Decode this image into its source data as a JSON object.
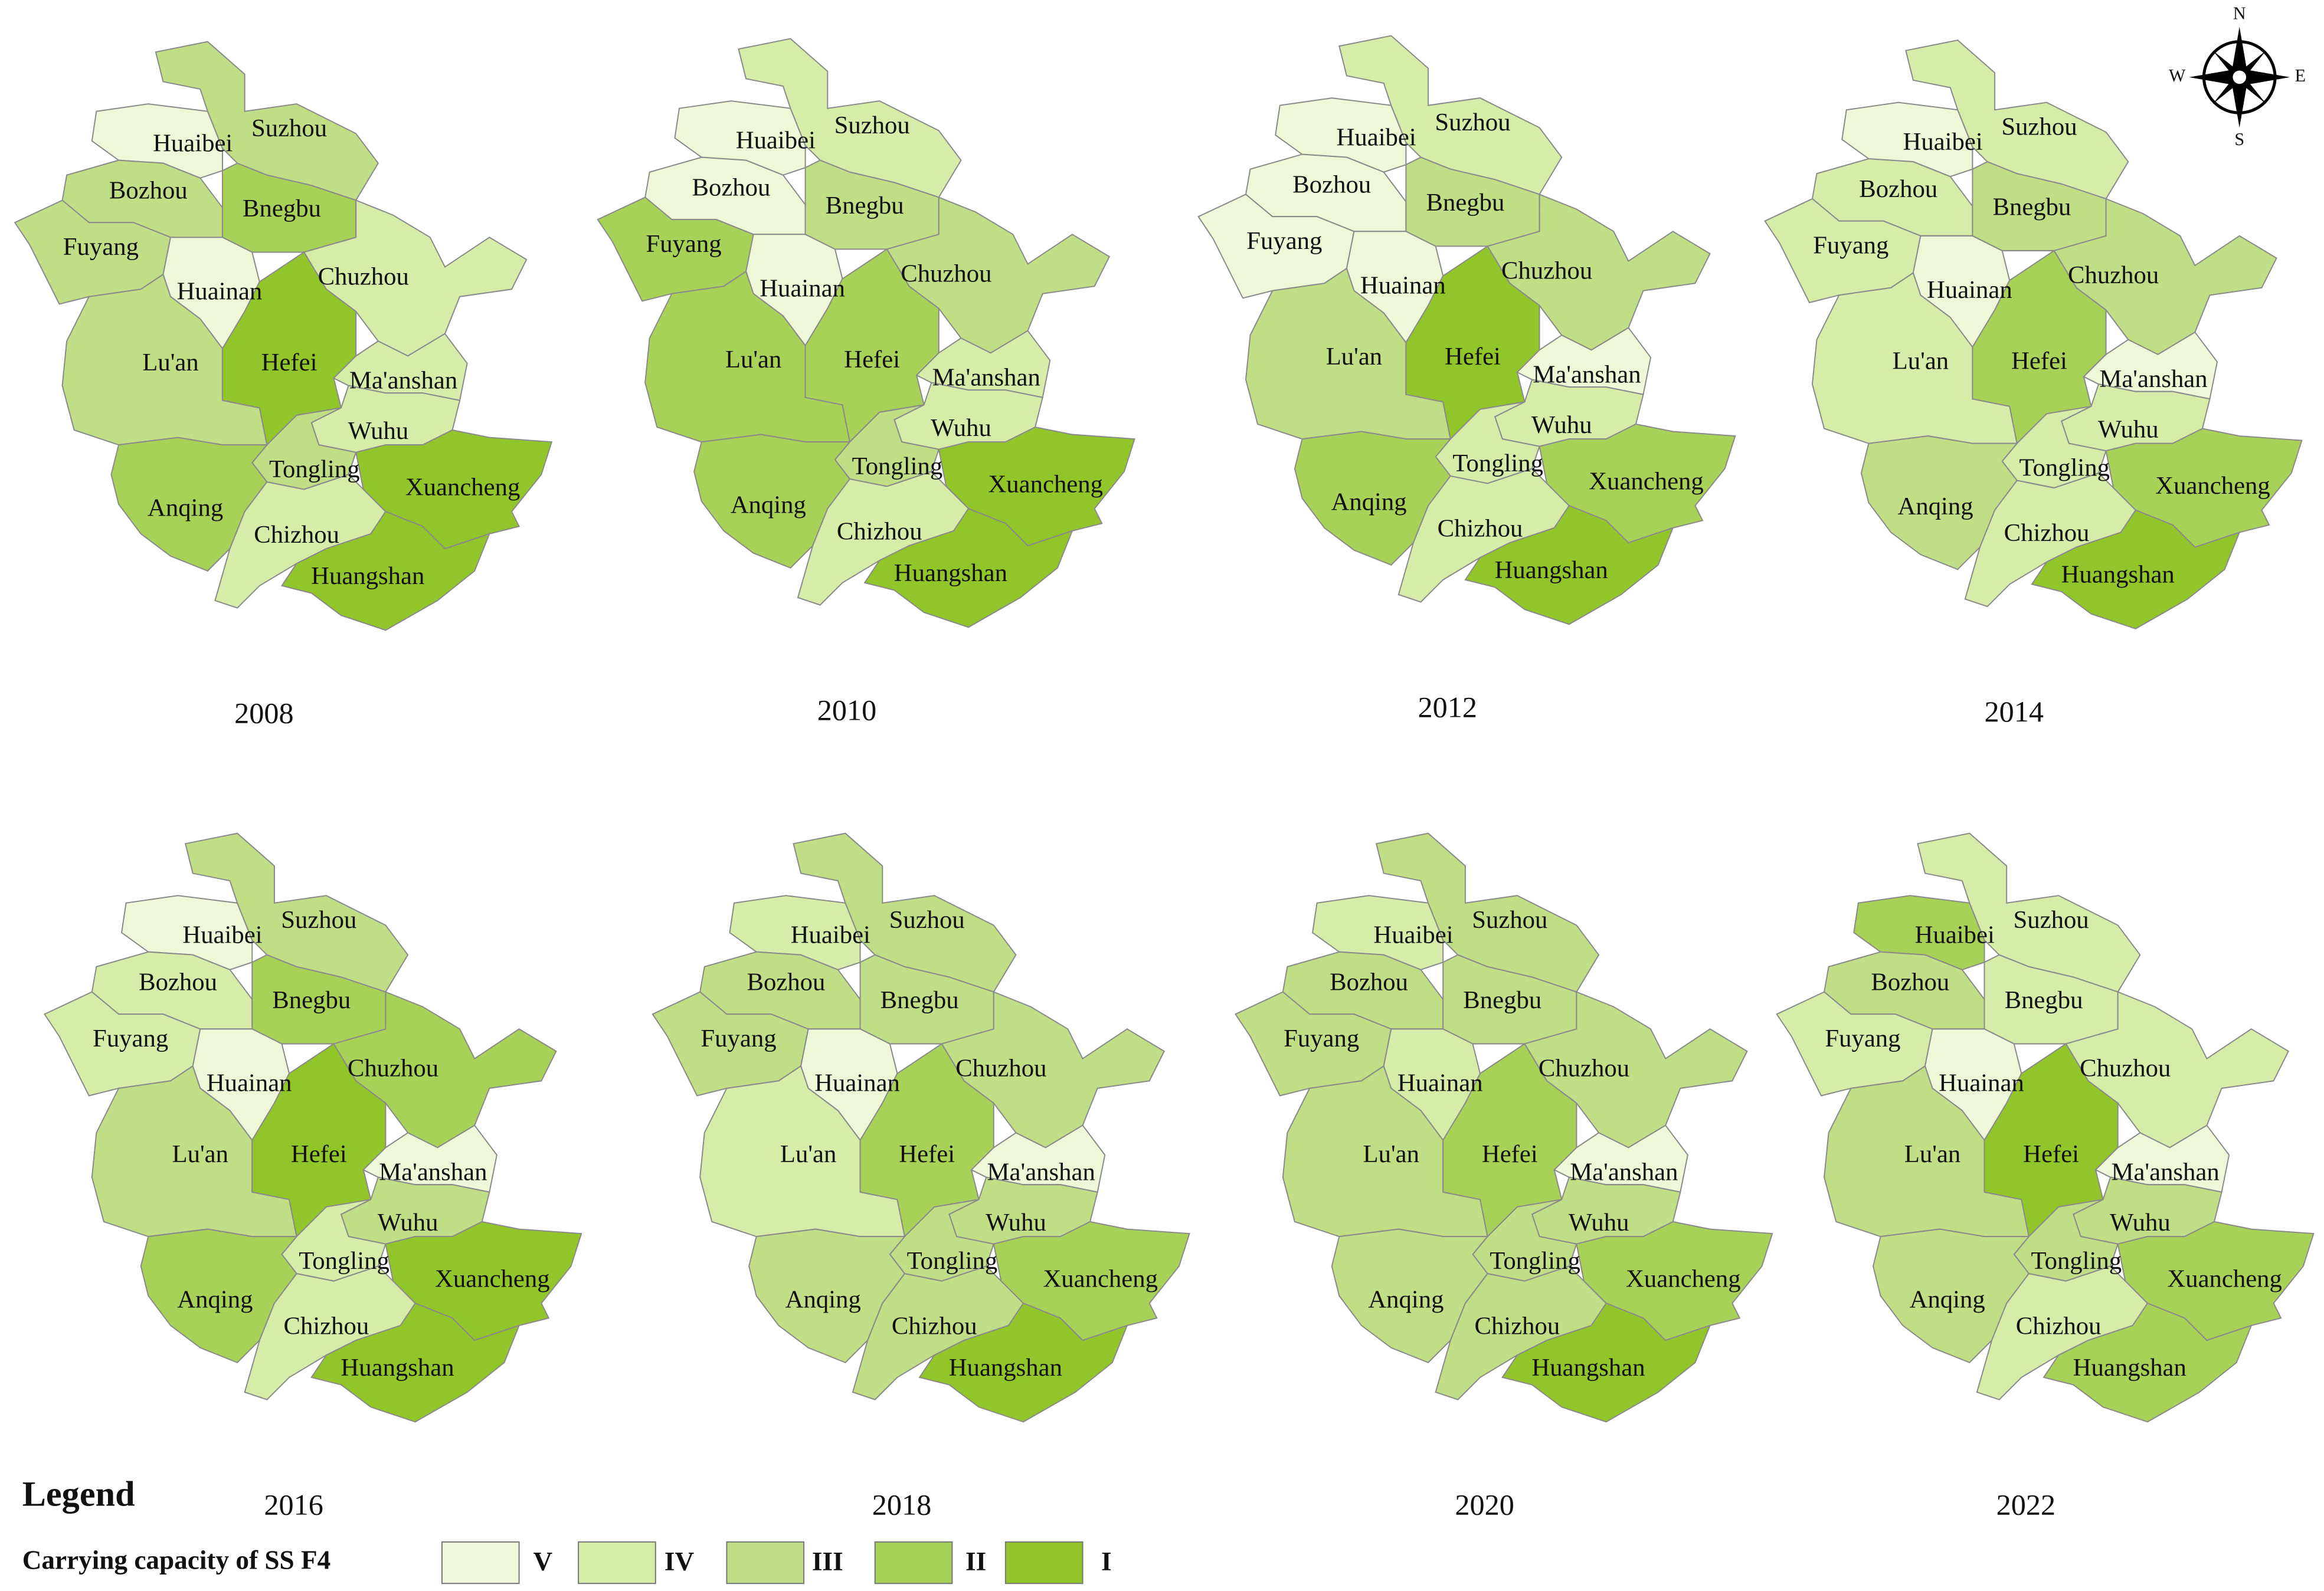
{
  "legend": {
    "title": "Legend",
    "label": "Carrying capacity of SS  F4",
    "classes": [
      {
        "label": "V",
        "color": "#eef8d8"
      },
      {
        "label": "IV",
        "color": "#d8ecaa"
      },
      {
        "label": "III",
        "color": "#c0de85"
      },
      {
        "label": "II",
        "color": "#a8d158"
      },
      {
        "label": "I",
        "color": "#92c52a"
      }
    ]
  },
  "compass": {
    "n": "N",
    "e": "E",
    "s": "S",
    "w": "W"
  },
  "cities": [
    "Huaibei",
    "Suzhou",
    "Bozhou",
    "Bnegbu",
    "Fuyang",
    "Chuzhou",
    "Huainan",
    "Lu'an",
    "Hefei",
    "Ma'anshan",
    "Wuhu",
    "Tongling",
    "Xuancheng",
    "Anqing",
    "Chizhou",
    "Huangshan"
  ],
  "maps": [
    {
      "year": "2008",
      "classes": [
        "V",
        "III",
        "III",
        "II",
        "III",
        "IV",
        "V",
        "III",
        "I",
        "IV",
        "IV",
        "III",
        "I",
        "II",
        "IV",
        "I"
      ]
    },
    {
      "year": "2010",
      "classes": [
        "V",
        "IV",
        "V",
        "III",
        "II",
        "III",
        "V",
        "II",
        "II",
        "IV",
        "IV",
        "III",
        "I",
        "II",
        "IV",
        "I"
      ]
    },
    {
      "year": "2012",
      "classes": [
        "V",
        "IV",
        "V",
        "III",
        "V",
        "III",
        "V",
        "III",
        "I",
        "V",
        "IV",
        "IV",
        "II",
        "II",
        "IV",
        "I"
      ]
    },
    {
      "year": "2014",
      "classes": [
        "V",
        "IV",
        "IV",
        "III",
        "IV",
        "III",
        "V",
        "IV",
        "II",
        "V",
        "IV",
        "IV",
        "II",
        "III",
        "IV",
        "I"
      ]
    },
    {
      "year": "2016",
      "classes": [
        "V",
        "III",
        "IV",
        "II",
        "IV",
        "II",
        "V",
        "III",
        "I",
        "V",
        "III",
        "IV",
        "I",
        "II",
        "IV",
        "I"
      ]
    },
    {
      "year": "2018",
      "classes": [
        "IV",
        "III",
        "III",
        "III",
        "III",
        "III",
        "V",
        "IV",
        "II",
        "V",
        "III",
        "III",
        "II",
        "III",
        "III",
        "I"
      ]
    },
    {
      "year": "2020",
      "classes": [
        "IV",
        "III",
        "III",
        "III",
        "III",
        "III",
        "IV",
        "III",
        "II",
        "V",
        "III",
        "III",
        "II",
        "III",
        "III",
        "I"
      ]
    },
    {
      "year": "2022",
      "classes": [
        "II",
        "IV",
        "III",
        "IV",
        "IV",
        "IV",
        "V",
        "III",
        "I",
        "V",
        "III",
        "III",
        "II",
        "III",
        "IV",
        "II"
      ]
    }
  ]
}
